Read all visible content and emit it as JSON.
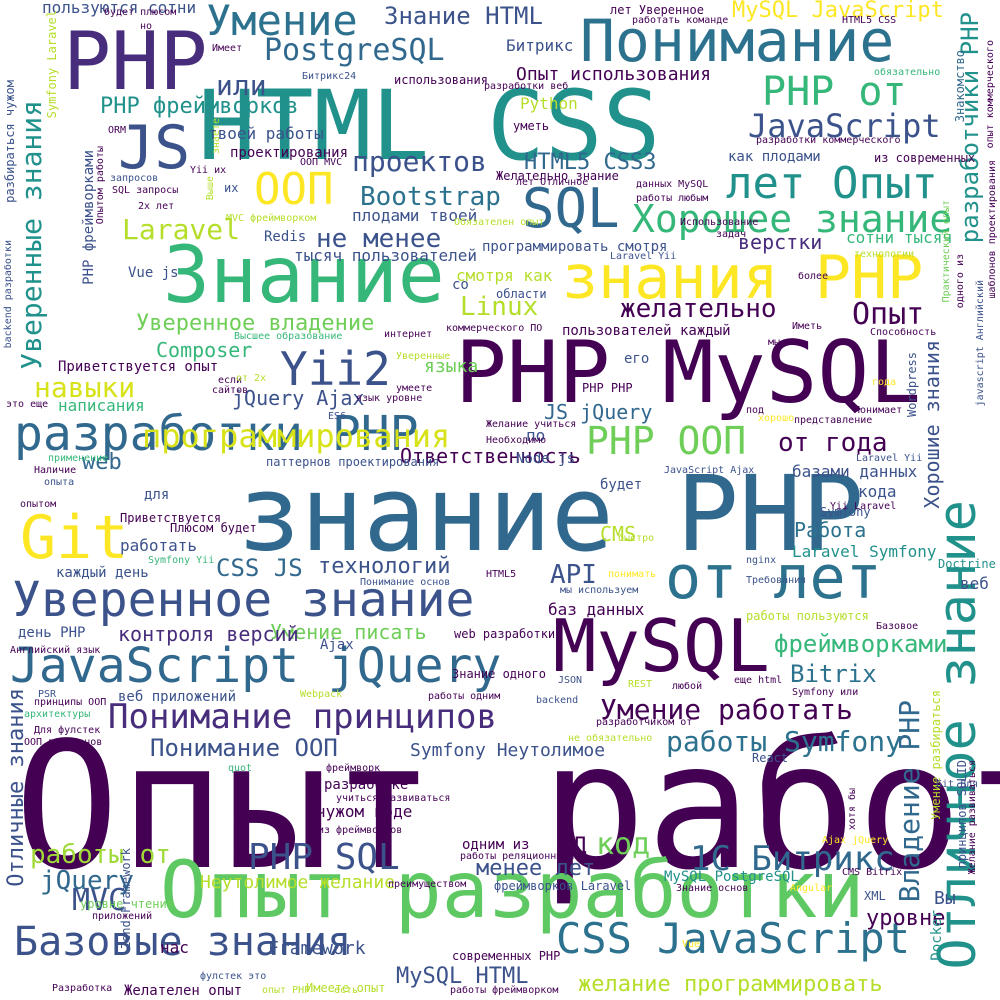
{
  "cloud": {
    "palette": {
      "indigo": "#440154",
      "navy": "#3b528b",
      "blue": "#31688e",
      "teal": "#21918c",
      "green": "#35b779",
      "lime": "#6ece58",
      "yellow": "#fde725"
    },
    "words": [
      {
        "text": "Опыт работы",
        "color": "#440154"
      },
      {
        "text": "знание PHP",
        "color": "#31688e"
      },
      {
        "text": "HTML CSS",
        "color": "#21918c"
      },
      {
        "text": "PHP MySQL",
        "color": "#440154"
      },
      {
        "text": "Опыт разработки",
        "color": "#5ec962"
      },
      {
        "text": "Знание",
        "color": "#35b779"
      },
      {
        "text": "от лет",
        "color": "#2c728e"
      },
      {
        "text": "PHP",
        "color": "#472d7b"
      },
      {
        "text": "MySQL",
        "color": "#440154"
      },
      {
        "text": "Понимание",
        "color": "#2c728e"
      },
      {
        "text": "разработки PHP",
        "color": "#31688e"
      },
      {
        "text": "Уверенное знание",
        "color": "#3b528b"
      },
      {
        "text": "JavaScript jQuery",
        "color": "#31688e"
      },
      {
        "text": "знания PHP",
        "color": "#fde725"
      },
      {
        "text": "Отличное знание",
        "color": "#21918c"
      },
      {
        "text": "Git",
        "color": "#fde725"
      },
      {
        "text": "JS",
        "color": "#3b528b"
      },
      {
        "text": "SQL",
        "color": "#31688e"
      },
      {
        "text": "лет Опыт",
        "color": "#21918c"
      },
      {
        "text": "Хорошее знание",
        "color": "#35b779"
      },
      {
        "text": "Базовые знания",
        "color": "#3b528b"
      },
      {
        "text": "CSS JavaScript",
        "color": "#2c728e"
      },
      {
        "text": "Понимание принципов",
        "color": "#472d7b"
      },
      {
        "text": "Умение",
        "color": "#2c728e"
      },
      {
        "text": "ООП",
        "color": "#fde725"
      },
      {
        "text": "Yii2",
        "color": "#3b528b"
      },
      {
        "text": "PHP ООП",
        "color": "#6ece58"
      },
      {
        "text": "PostgreSQL",
        "color": "#31688e"
      },
      {
        "text": "программирования",
        "color": "#d8e219"
      },
      {
        "text": "JavaScript",
        "color": "#3b528b"
      },
      {
        "text": "PHP от",
        "color": "#35b779"
      },
      {
        "text": "1С Битрикс",
        "color": "#31688e"
      },
      {
        "text": "работы Symfony",
        "color": "#2c728e"
      },
      {
        "text": "Умение работать",
        "color": "#440154"
      },
      {
        "text": "PHP SQL",
        "color": "#3b528b"
      },
      {
        "text": "проектов",
        "color": "#3b528b"
      },
      {
        "text": "Знание HTML",
        "color": "#3b528b"
      },
      {
        "text": "MySQL JavaScript",
        "color": "#fde725"
      },
      {
        "text": "Уверенное владение",
        "color": "#6ece58"
      },
      {
        "text": "навыки",
        "color": "#d8e219"
      },
      {
        "text": "Bootstrap",
        "color": "#2c728e"
      },
      {
        "text": "Laravel",
        "color": "#b5de2b"
      },
      {
        "text": "не менее",
        "color": "#3b528b"
      },
      {
        "text": "HTML5 CSS3",
        "color": "#31688e"
      },
      {
        "text": "Опыт использования",
        "color": "#440154"
      },
      {
        "text": "PHP фреймворков",
        "color": "#21918c"
      },
      {
        "text": "или",
        "color": "#3b528b"
      },
      {
        "text": "желательно",
        "color": "#440154"
      },
      {
        "text": "Linux",
        "color": "#b5de2b"
      },
      {
        "text": "Опыт",
        "color": "#440154"
      },
      {
        "text": "от года",
        "color": "#440154"
      },
      {
        "text": "работы от",
        "color": "#a0da39"
      },
      {
        "text": "Уверенные знания",
        "color": "#21918c"
      },
      {
        "text": "фреймворками",
        "color": "#35b779"
      },
      {
        "text": "Владение PHP",
        "color": "#31688e"
      },
      {
        "text": "разработчики PHP",
        "color": "#21918c"
      },
      {
        "text": "Хорошие знания",
        "color": "#3b528b"
      },
      {
        "text": "Отличные знания",
        "color": "#3b528b"
      },
      {
        "text": "Ответственность",
        "color": "#440154"
      },
      {
        "text": "технологий",
        "color": "#3b528b"
      },
      {
        "text": "CSS JS",
        "color": "#31688e"
      },
      {
        "text": "Умение писать",
        "color": "#6ece58"
      },
      {
        "text": "Composer",
        "color": "#35b779"
      },
      {
        "text": "jQuery Ajax",
        "color": "#3b528b"
      },
      {
        "text": "JS jQuery",
        "color": "#31688e"
      },
      {
        "text": "API",
        "color": "#3b528b"
      },
      {
        "text": "MVC",
        "color": "#3b528b"
      },
      {
        "text": "jQuery",
        "color": "#31688e"
      },
      {
        "text": "менее лет",
        "color": "#3b528b"
      },
      {
        "text": "код",
        "color": "#6ece58"
      },
      {
        "text": "БД",
        "color": "#440154"
      },
      {
        "text": "Bitrix",
        "color": "#2c728e"
      },
      {
        "text": "Понимание ООП",
        "color": "#3b528b"
      },
      {
        "text": "верстки",
        "color": "#472d7b"
      },
      {
        "text": "Работа",
        "color": "#2c728e"
      },
      {
        "text": "web",
        "color": "#31688e"
      },
      {
        "text": "языка",
        "color": "#6ece58"
      },
      {
        "text": "контроля версий",
        "color": "#472d7b"
      },
      {
        "text": "Неутолимое желание",
        "color": "#b5de2b"
      },
      {
        "text": "уровне",
        "color": "#440154"
      },
      {
        "text": "Framework",
        "color": "#3b528b"
      },
      {
        "text": "MySQL HTML",
        "color": "#3b528b"
      },
      {
        "text": "желание программировать",
        "color": "#b5de2b"
      },
      {
        "text": "Symfony Неутолимое",
        "color": "#3b528b"
      },
      {
        "text": "пользуются сотни",
        "color": "#3b528b"
      },
      {
        "text": "Битрикс",
        "color": "#3b528b"
      },
      {
        "text": "Python",
        "color": "#b5de2b"
      },
      {
        "text": "твоей работы",
        "color": "#3b528b"
      },
      {
        "text": "как плодами",
        "color": "#3b528b"
      },
      {
        "text": "плодами твоей",
        "color": "#3b528b"
      },
      {
        "text": "тысяч пользователей",
        "color": "#3b528b"
      },
      {
        "text": "программировать смотря",
        "color": "#3b528b"
      },
      {
        "text": "пользователей каждый",
        "color": "#440154"
      },
      {
        "text": "Vue js",
        "color": "#3b528b"
      },
      {
        "text": "смотря как",
        "color": "#b5de2b"
      },
      {
        "text": "паттернов проектирования",
        "color": "#3b528b"
      },
      {
        "text": "базами данных",
        "color": "#3b528b"
      },
      {
        "text": "Laravel Symfony",
        "color": "#21918c"
      },
      {
        "text": "Приветствуется опыт",
        "color": "#440154"
      },
      {
        "text": "написания",
        "color": "#35b779"
      },
      {
        "text": "Redis",
        "color": "#3b528b"
      },
      {
        "text": "проектирования",
        "color": "#440154"
      },
      {
        "text": "сотни тысяч",
        "color": "#35b779"
      },
      {
        "text": "области",
        "color": "#3b528b"
      },
      {
        "text": "кода",
        "color": "#3b528b"
      },
      {
        "text": "CMS",
        "color": "#b5de2b"
      },
      {
        "text": "работать",
        "color": "#3b528b"
      },
      {
        "text": "каждый день",
        "color": "#3b528b"
      },
      {
        "text": "баз данных",
        "color": "#440154"
      },
      {
        "text": "веб приложений",
        "color": "#3b528b"
      },
      {
        "text": "день PHP",
        "color": "#3b528b"
      },
      {
        "text": "разработке",
        "color": "#440154"
      },
      {
        "text": "чужом коде",
        "color": "#440154"
      },
      {
        "text": "одним из",
        "color": "#440154"
      },
      {
        "text": "уметь",
        "color": "#440154"
      },
      {
        "text": "по",
        "color": "#3b528b"
      },
      {
        "text": "для",
        "color": "#3b528b"
      },
      {
        "text": "со",
        "color": "#3b528b"
      },
      {
        "text": "его",
        "color": "#3b528b"
      },
      {
        "text": "Ajax",
        "color": "#3b528b"
      },
      {
        "text": "Docker",
        "color": "#21918c"
      },
      {
        "text": "Вы",
        "color": "#3b528b"
      },
      {
        "text": "нас",
        "color": "#440154"
      },
      {
        "text": "веб",
        "color": "#3b528b"
      },
      {
        "text": "Doctrine",
        "color": "#21918c"
      },
      {
        "text": "будет",
        "color": "#3b528b"
      },
      {
        "text": "Symfony",
        "color": "#3b528b"
      },
      {
        "text": "Wordpress",
        "color": "#3b528b"
      },
      {
        "text": "Знакомство",
        "color": "#31688e"
      },
      {
        "text": "Приветствуется",
        "color": "#440154"
      },
      {
        "text": "Плюсом будет",
        "color": "#440154"
      },
      {
        "text": "Желательно знание",
        "color": "#440154"
      },
      {
        "text": "Node js",
        "color": "#3b528b"
      },
      {
        "text": "Умение разбираться",
        "color": "#b5de2b"
      },
      {
        "text": "XML",
        "color": "#3b528b"
      },
      {
        "text": "Желателен опыт",
        "color": "#440154"
      },
      {
        "text": "современных PHP",
        "color": "#440154"
      },
      {
        "text": "фреймворков Laravel",
        "color": "#3b528b"
      },
      {
        "text": "MySQL PostgreSQL",
        "color": "#21918c"
      },
      {
        "text": "Zend Framework",
        "color": "#3b528b"
      },
      {
        "text": "web разработки",
        "color": "#440154"
      },
      {
        "text": "Знание одного",
        "color": "#440154"
      },
      {
        "text": "Английский язык",
        "color": "#440154"
      },
      {
        "text": "Ajax jQuery",
        "color": "#fde725"
      },
      {
        "text": "принципов SOLID",
        "color": "#3b528b"
      },
      {
        "text": "SQL запросы",
        "color": "#440154"
      },
      {
        "text": "2х лет",
        "color": "#440154"
      },
      {
        "text": "Использование",
        "color": "#440154"
      },
      {
        "text": "использования",
        "color": "#440154"
      },
      {
        "text": "ORM",
        "color": "#440154"
      },
      {
        "text": "Битрикс24",
        "color": "#3b528b"
      },
      {
        "text": "Имеете опыт",
        "color": "#b5de2b"
      },
      {
        "text": "Разработка",
        "color": "#440154"
      },
      {
        "text": "опыт PHP",
        "color": "#b5de2b"
      },
      {
        "text": "есть",
        "color": "#b5de2b"
      },
      {
        "text": "фулстек это",
        "color": "#3b528b"
      },
      {
        "text": "уровне чтения",
        "color": "#6ece58"
      },
      {
        "text": "приложений",
        "color": "#440154"
      },
      {
        "text": "лет Уверенное",
        "color": "#440154"
      },
      {
        "text": "работать команде",
        "color": "#440154"
      },
      {
        "text": "HTML5 CSS",
        "color": "#440154"
      },
      {
        "text": "Имеет",
        "color": "#440154"
      },
      {
        "text": "будет плюсом",
        "color": "#440154"
      },
      {
        "text": "из современных",
        "color": "#440154"
      },
      {
        "text": "разработки коммерческого",
        "color": "#440154"
      },
      {
        "text": "данных MySQL",
        "color": "#440154"
      },
      {
        "text": "работы любым",
        "color": "#440154"
      },
      {
        "text": "ООП MVC",
        "color": "#440154"
      },
      {
        "text": "лет Отличное",
        "color": "#440154"
      },
      {
        "text": "обязательно",
        "color": "#35b779"
      },
      {
        "text": "Laravel Yii",
        "color": "#3b528b"
      },
      {
        "text": "технологии",
        "color": "#b5de2b"
      },
      {
        "text": "более",
        "color": "#440154"
      },
      {
        "text": "Иметь",
        "color": "#440154"
      },
      {
        "text": "Способность",
        "color": "#440154"
      },
      {
        "text": "Высшее образование",
        "color": "#35b779"
      },
      {
        "text": "коммерческого ПО",
        "color": "#440154"
      },
      {
        "text": "интернет",
        "color": "#440154"
      },
      {
        "text": "мы",
        "color": "#440154"
      },
      {
        "text": "умеете",
        "color": "#440154"
      },
      {
        "text": "Желание учиться",
        "color": "#440154"
      },
      {
        "text": "Необходимо",
        "color": "#440154"
      },
      {
        "text": "JavaScript Ajax",
        "color": "#3b528b"
      },
      {
        "text": "Понимает",
        "color": "#440154"
      },
      {
        "text": "представление",
        "color": "#440154"
      },
      {
        "text": "Laravel Yii",
        "color": "#3b528b"
      },
      {
        "text": "Yii Laravel",
        "color": "#440154"
      },
      {
        "text": "года",
        "color": "#fde725"
      },
      {
        "text": "под",
        "color": "#440154"
      },
      {
        "text": "хорошо",
        "color": "#fde725"
      },
      {
        "text": "Требования",
        "color": "#3b528b"
      },
      {
        "text": "nginx",
        "color": "#3b528b"
      },
      {
        "text": "понимать",
        "color": "#fde725"
      },
      {
        "text": "быстро",
        "color": "#b5de2b"
      },
      {
        "text": "HTML5",
        "color": "#440154"
      },
      {
        "text": "мы используем",
        "color": "#3b528b"
      },
      {
        "text": "Понимание основ",
        "color": "#3b528b"
      },
      {
        "text": "работы пользуются",
        "color": "#b5de2b"
      },
      {
        "text": "Базовое",
        "color": "#440154"
      },
      {
        "text": "Webpack",
        "color": "#b5de2b"
      },
      {
        "text": "JSON",
        "color": "#3b528b"
      },
      {
        "text": "REST",
        "color": "#b5de2b"
      },
      {
        "text": "любой",
        "color": "#440154"
      },
      {
        "text": "еще html",
        "color": "#440154"
      },
      {
        "text": "работы одним",
        "color": "#440154"
      },
      {
        "text": "backend",
        "color": "#3b528b"
      },
      {
        "text": "разработчиком от",
        "color": "#440154"
      },
      {
        "text": "не обязательно",
        "color": "#b5de2b"
      },
      {
        "text": "React",
        "color": "#3b528b"
      },
      {
        "text": "quot",
        "color": "#35b779"
      },
      {
        "text": "фреймворк",
        "color": "#440154"
      },
      {
        "text": "учиться развиваться",
        "color": "#440154"
      },
      {
        "text": "из фреймворков",
        "color": "#440154"
      },
      {
        "text": "работы реляционными",
        "color": "#440154"
      },
      {
        "text": "преимуществом",
        "color": "#440154"
      },
      {
        "text": "Знание основ",
        "color": "#440154"
      },
      {
        "text": "Angular",
        "color": "#fde725"
      },
      {
        "text": "CMS Bitrix",
        "color": "#440154"
      },
      {
        "text": "Vue",
        "color": "#fde725"
      },
      {
        "text": "работы фреймворком",
        "color": "#440154"
      },
      {
        "text": "Symfony Yii",
        "color": "#35b779"
      },
      {
        "text": "Наличие",
        "color": "#440154"
      },
      {
        "text": "опыта",
        "color": "#3b528b"
      },
      {
        "text": "опытом",
        "color": "#440154"
      },
      {
        "text": "применение",
        "color": "#35b779"
      },
      {
        "text": "это еще",
        "color": "#440154"
      },
      {
        "text": "ES6",
        "color": "#3b528b"
      },
      {
        "text": "язык уровне",
        "color": "#440154"
      },
      {
        "text": "сайтов",
        "color": "#440154"
      },
      {
        "text": "если",
        "color": "#440154"
      },
      {
        "text": "от 2х",
        "color": "#b5de2b"
      },
      {
        "text": "Уверенные",
        "color": "#b5de2b"
      },
      {
        "text": "PHP PHP",
        "color": "#440154"
      },
      {
        "text": "Для фулстек",
        "color": "#440154"
      },
      {
        "text": "архитектуры",
        "color": "#35b779"
      },
      {
        "text": "принципы ООП",
        "color": "#440154"
      },
      {
        "text": "PSR",
        "color": "#3b528b"
      },
      {
        "text": "ООП паттернов",
        "color": "#440154"
      },
      {
        "text": "хотя бы",
        "color": "#440154"
      },
      {
        "text": "Symfony или",
        "color": "#440154"
      },
      {
        "text": "Git Для",
        "color": "#3b528b"
      },
      {
        "text": "их",
        "color": "#3b528b"
      },
      {
        "text": "Выше",
        "color": "#b5de2b"
      },
      {
        "text": "Yii их",
        "color": "#440154"
      },
      {
        "text": "запросов",
        "color": "#3b528b"
      },
      {
        "text": "знаете",
        "color": "#b5de2b"
      },
      {
        "text": "MVC фреймворком",
        "color": "#b5de2b"
      },
      {
        "text": "Обязателен опыт",
        "color": "#b5de2b"
      },
      {
        "text": "задач",
        "color": "#440154"
      },
      {
        "text": "но",
        "color": "#440154"
      },
      {
        "text": "разработки веб",
        "color": "#440154"
      },
      {
        "text": "Symfony Laravel",
        "color": "#b5de2b"
      },
      {
        "text": "разбираться чужом",
        "color": "#3b528b"
      },
      {
        "text": "PHP фреймворками",
        "color": "#3b528b"
      },
      {
        "text": "backend разработки",
        "color": "#3b528b"
      },
      {
        "text": "Опытом работы",
        "color": "#440154"
      },
      {
        "text": "javascript Английский",
        "color": "#3b528b"
      },
      {
        "text": "шаблонов проектирования",
        "color": "#440154"
      },
      {
        "text": "Желание развиваться",
        "color": "#440154"
      },
      {
        "text": "Практический опыт",
        "color": "#6ece58"
      },
      {
        "text": "одного из",
        "color": "#440154"
      },
      {
        "text": "опыт коммерческого",
        "color": "#440154"
      }
    ]
  }
}
